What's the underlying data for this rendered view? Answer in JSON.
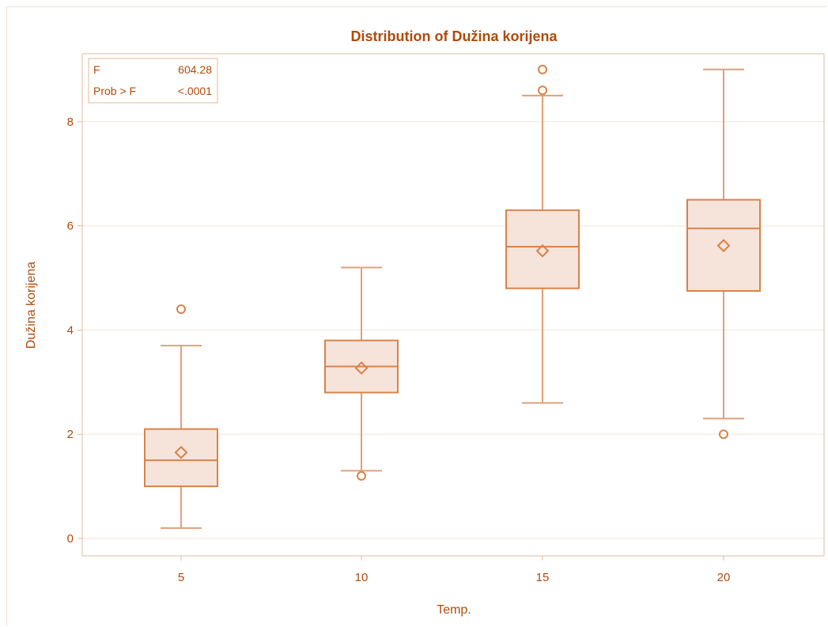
{
  "chart_data": {
    "type": "box",
    "title": "Distribution of Dužina korijena",
    "xlabel": "Temp.",
    "ylabel": "Dužina korijena",
    "categories": [
      "5",
      "10",
      "15",
      "20"
    ],
    "ylim": [
      -0.3,
      9.3
    ],
    "yticks": [
      0,
      2,
      4,
      6,
      8
    ],
    "boxes": [
      {
        "category": "5",
        "min": 0.2,
        "q1": 1.0,
        "median": 1.5,
        "q3": 2.1,
        "max": 3.7,
        "mean": 1.65,
        "outliers": [
          4.4
        ]
      },
      {
        "category": "10",
        "min": 1.3,
        "q1": 2.8,
        "median": 3.3,
        "q3": 3.8,
        "max": 5.2,
        "mean": 3.27,
        "outliers": [
          1.2
        ]
      },
      {
        "category": "15",
        "min": 2.6,
        "q1": 4.8,
        "median": 5.6,
        "q3": 6.3,
        "max": 8.5,
        "mean": 5.52,
        "outliers": [
          8.6,
          9.0
        ]
      },
      {
        "category": "20",
        "min": 2.3,
        "q1": 4.75,
        "median": 5.95,
        "q3": 6.5,
        "max": 9.0,
        "mean": 5.62,
        "outliers": [
          2.0
        ]
      }
    ],
    "grid": true,
    "stats_inset": {
      "position": "top-left",
      "rows": [
        {
          "label": "F",
          "value": "604.28"
        },
        {
          "label": "Prob > F",
          "value": "<.0001"
        }
      ]
    },
    "colors": {
      "box_fill": "#f6e3d9",
      "box_stroke": "#d7834a",
      "whisker": "#e0a07a",
      "text": "#b04a0a",
      "grid": "#f8ece5",
      "frame": "#e7b89a"
    }
  }
}
